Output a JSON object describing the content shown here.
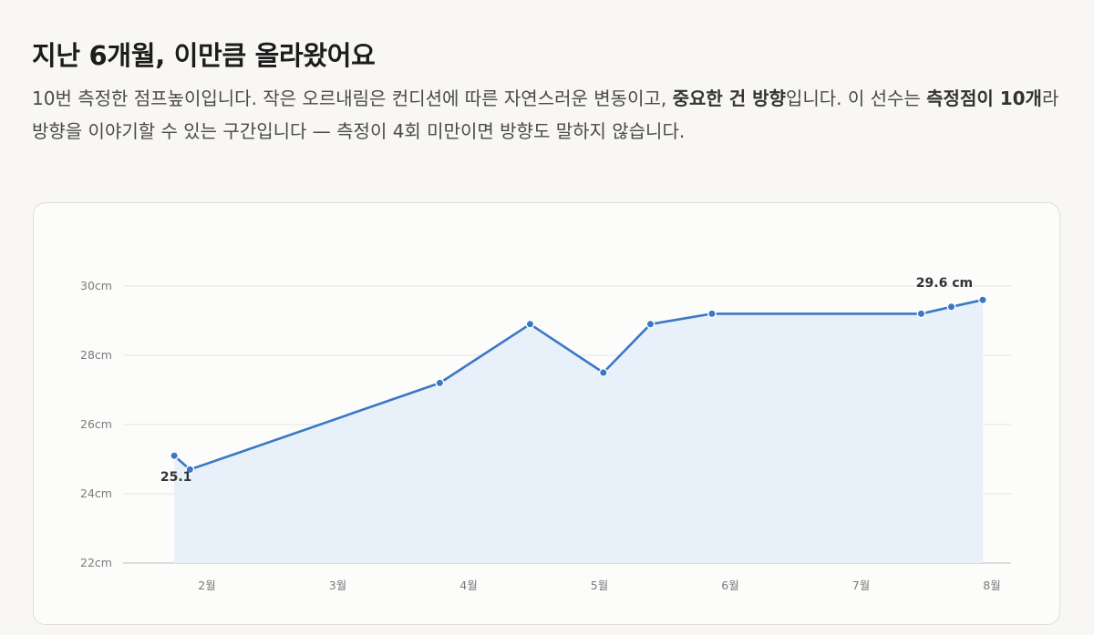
{
  "header": {
    "title": "지난 6개월, 이만큼 올라왔어요",
    "desc_1": "10번 측정한 점프높이입니다. 작은 오르내림은 컨디션에 따른 자연스러운 변동이고, ",
    "desc_bold_1": "중요한 건 방향",
    "desc_2": "입니다. 이 선수는 ",
    "desc_bold_2": "측정점이 10개",
    "desc_3": "라 방향을 이야기할 수 있는 구간입니다 — 측정이 4회 미만이면 방향도 말하지 않습니다."
  },
  "chart_data": {
    "type": "area",
    "unit": "cm",
    "x_ticks": [
      "2월",
      "3월",
      "4월",
      "5월",
      "6월",
      "7월",
      "8월"
    ],
    "y_ticks": [
      "22cm",
      "24cm",
      "26cm",
      "28cm",
      "30cm"
    ],
    "ylim": [
      22,
      30.5
    ],
    "grid": true,
    "points": [
      {
        "month": 1.75,
        "value": 25.1
      },
      {
        "month": 1.87,
        "value": 24.7
      },
      {
        "month": 3.78,
        "value": 27.2
      },
      {
        "month": 4.47,
        "value": 28.9
      },
      {
        "month": 5.03,
        "value": 27.5
      },
      {
        "month": 5.39,
        "value": 28.9
      },
      {
        "month": 5.86,
        "value": 29.2
      },
      {
        "month": 7.46,
        "value": 29.2
      },
      {
        "month": 7.69,
        "value": 29.4
      },
      {
        "month": 7.93,
        "value": 29.6
      }
    ],
    "first_label": "25.1",
    "last_label": "29.6 cm",
    "colors": {
      "line": "#3a78c4",
      "area": "#e8f0fa",
      "grid": "#e4e4e4",
      "axis": "#bdbdbd"
    }
  }
}
